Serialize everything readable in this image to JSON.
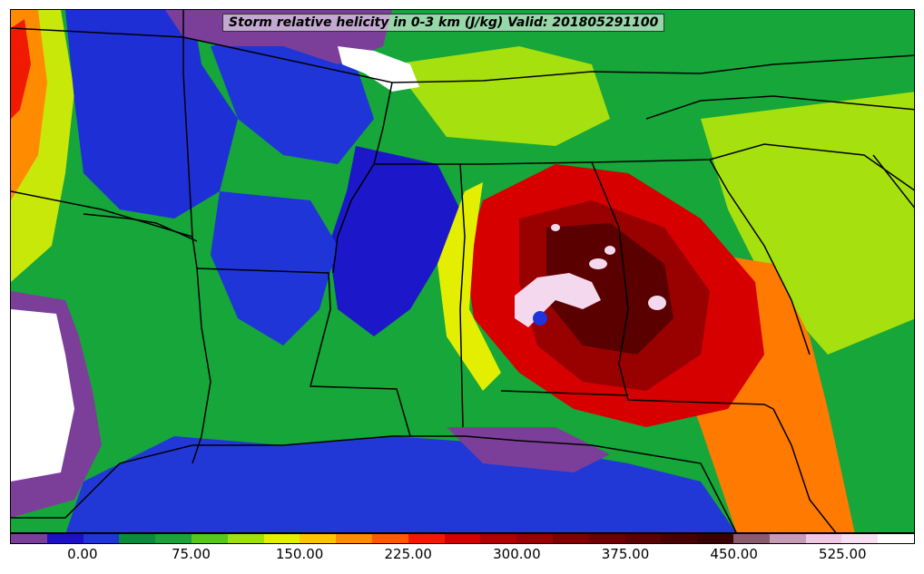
{
  "title": "Storm relative helicity in 0-3 km (J/kg) Valid: 201805291100",
  "colorbar": {
    "colors": [
      "#7b3f9a",
      "#1c0fc8",
      "#1f35d8",
      "#0a8c3c",
      "#19a33a",
      "#56c81a",
      "#a0df0e",
      "#e4ee00",
      "#ffc400",
      "#ff8c00",
      "#ff5a00",
      "#f01a00",
      "#d10000",
      "#b20000",
      "#990000",
      "#800000",
      "#6e0000",
      "#5c0000",
      "#4a0000",
      "#3a0000",
      "#8a5a6e",
      "#c79ab8",
      "#f0c8e6",
      "#f8e0f2",
      "#ffffff"
    ],
    "ticks": [
      "0.00",
      "75.00",
      "150.00",
      "225.00",
      "300.00",
      "375.00",
      "450.00",
      "525.00"
    ]
  },
  "map": {
    "background": "#16a63a",
    "regions": [
      {
        "name": "blue-west",
        "color": "#1f2fd6"
      },
      {
        "name": "blue-mississippi",
        "color": "#1c18c9"
      },
      {
        "name": "gulf-blue",
        "color": "#2238d6"
      },
      {
        "name": "purple-west",
        "color": "#7b3f9a"
      },
      {
        "name": "white-west",
        "color": "#ffffff"
      },
      {
        "name": "yellow-green-east",
        "color": "#a6e00e"
      },
      {
        "name": "orange-florida",
        "color": "#ff7a00"
      },
      {
        "name": "red-core",
        "color": "#d60000"
      },
      {
        "name": "dark-core",
        "color": "#6a0000"
      },
      {
        "name": "pink-eye",
        "color": "#f4d8ee"
      }
    ]
  }
}
